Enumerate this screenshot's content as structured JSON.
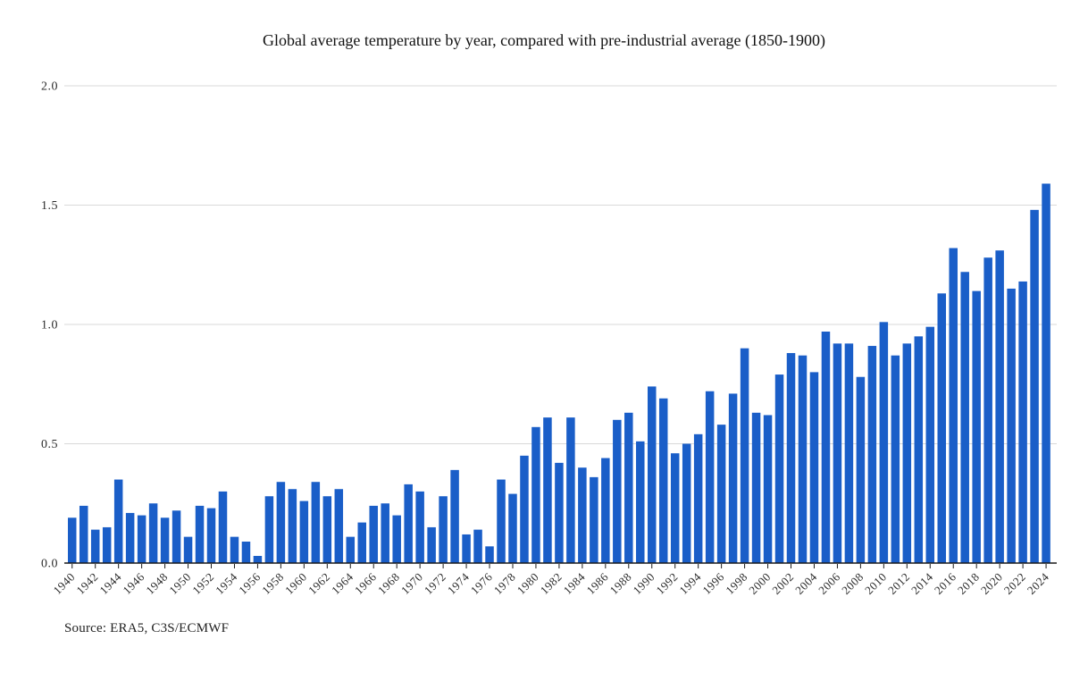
{
  "title": "Global average temperature by year, compared with pre-industrial average (1850-1900)",
  "source": "Source: ERA5, C3S/ECMWF",
  "colors": {
    "bar": "#1a5ec8",
    "grid": "#d9d9d9",
    "axis": "#1a1a1a",
    "tick_text": "#2b2b2b",
    "title_text": "#111111",
    "background": "#ffffff"
  },
  "chart_data": {
    "type": "bar",
    "title": "Global average temperature by year, compared with pre-industrial average (1850-1900)",
    "xlabel": "",
    "ylabel": "",
    "ylim": [
      0.0,
      2.0
    ],
    "yticks": [
      0.0,
      0.5,
      1.0,
      1.5,
      2.0
    ],
    "ytick_labels": [
      "0.0",
      "0.5",
      "1.0",
      "1.5",
      "2.0"
    ],
    "xtick_step": 2,
    "grid": true,
    "legend": false,
    "x": [
      1940,
      1941,
      1942,
      1943,
      1944,
      1945,
      1946,
      1947,
      1948,
      1949,
      1950,
      1951,
      1952,
      1953,
      1954,
      1955,
      1956,
      1957,
      1958,
      1959,
      1960,
      1961,
      1962,
      1963,
      1964,
      1965,
      1966,
      1967,
      1968,
      1969,
      1970,
      1971,
      1972,
      1973,
      1974,
      1975,
      1976,
      1977,
      1978,
      1979,
      1980,
      1981,
      1982,
      1983,
      1984,
      1985,
      1986,
      1987,
      1988,
      1989,
      1990,
      1991,
      1992,
      1993,
      1994,
      1995,
      1996,
      1997,
      1998,
      1999,
      2000,
      2001,
      2002,
      2003,
      2004,
      2005,
      2006,
      2007,
      2008,
      2009,
      2010,
      2011,
      2012,
      2013,
      2014,
      2015,
      2016,
      2017,
      2018,
      2019,
      2020,
      2021,
      2022,
      2023,
      2024
    ],
    "values": [
      0.19,
      0.24,
      0.14,
      0.15,
      0.35,
      0.21,
      0.2,
      0.25,
      0.19,
      0.22,
      0.11,
      0.24,
      0.23,
      0.3,
      0.11,
      0.09,
      0.03,
      0.28,
      0.34,
      0.31,
      0.26,
      0.34,
      0.28,
      0.31,
      0.11,
      0.17,
      0.24,
      0.25,
      0.2,
      0.33,
      0.3,
      0.15,
      0.28,
      0.39,
      0.12,
      0.14,
      0.07,
      0.35,
      0.29,
      0.45,
      0.57,
      0.61,
      0.42,
      0.61,
      0.4,
      0.36,
      0.44,
      0.6,
      0.63,
      0.51,
      0.74,
      0.69,
      0.46,
      0.5,
      0.54,
      0.72,
      0.58,
      0.71,
      0.9,
      0.63,
      0.62,
      0.79,
      0.88,
      0.87,
      0.8,
      0.97,
      0.92,
      0.92,
      0.78,
      0.91,
      1.01,
      0.87,
      0.92,
      0.95,
      0.99,
      1.13,
      1.32,
      1.22,
      1.14,
      1.28,
      1.31,
      1.15,
      1.18,
      1.48,
      1.59
    ]
  }
}
